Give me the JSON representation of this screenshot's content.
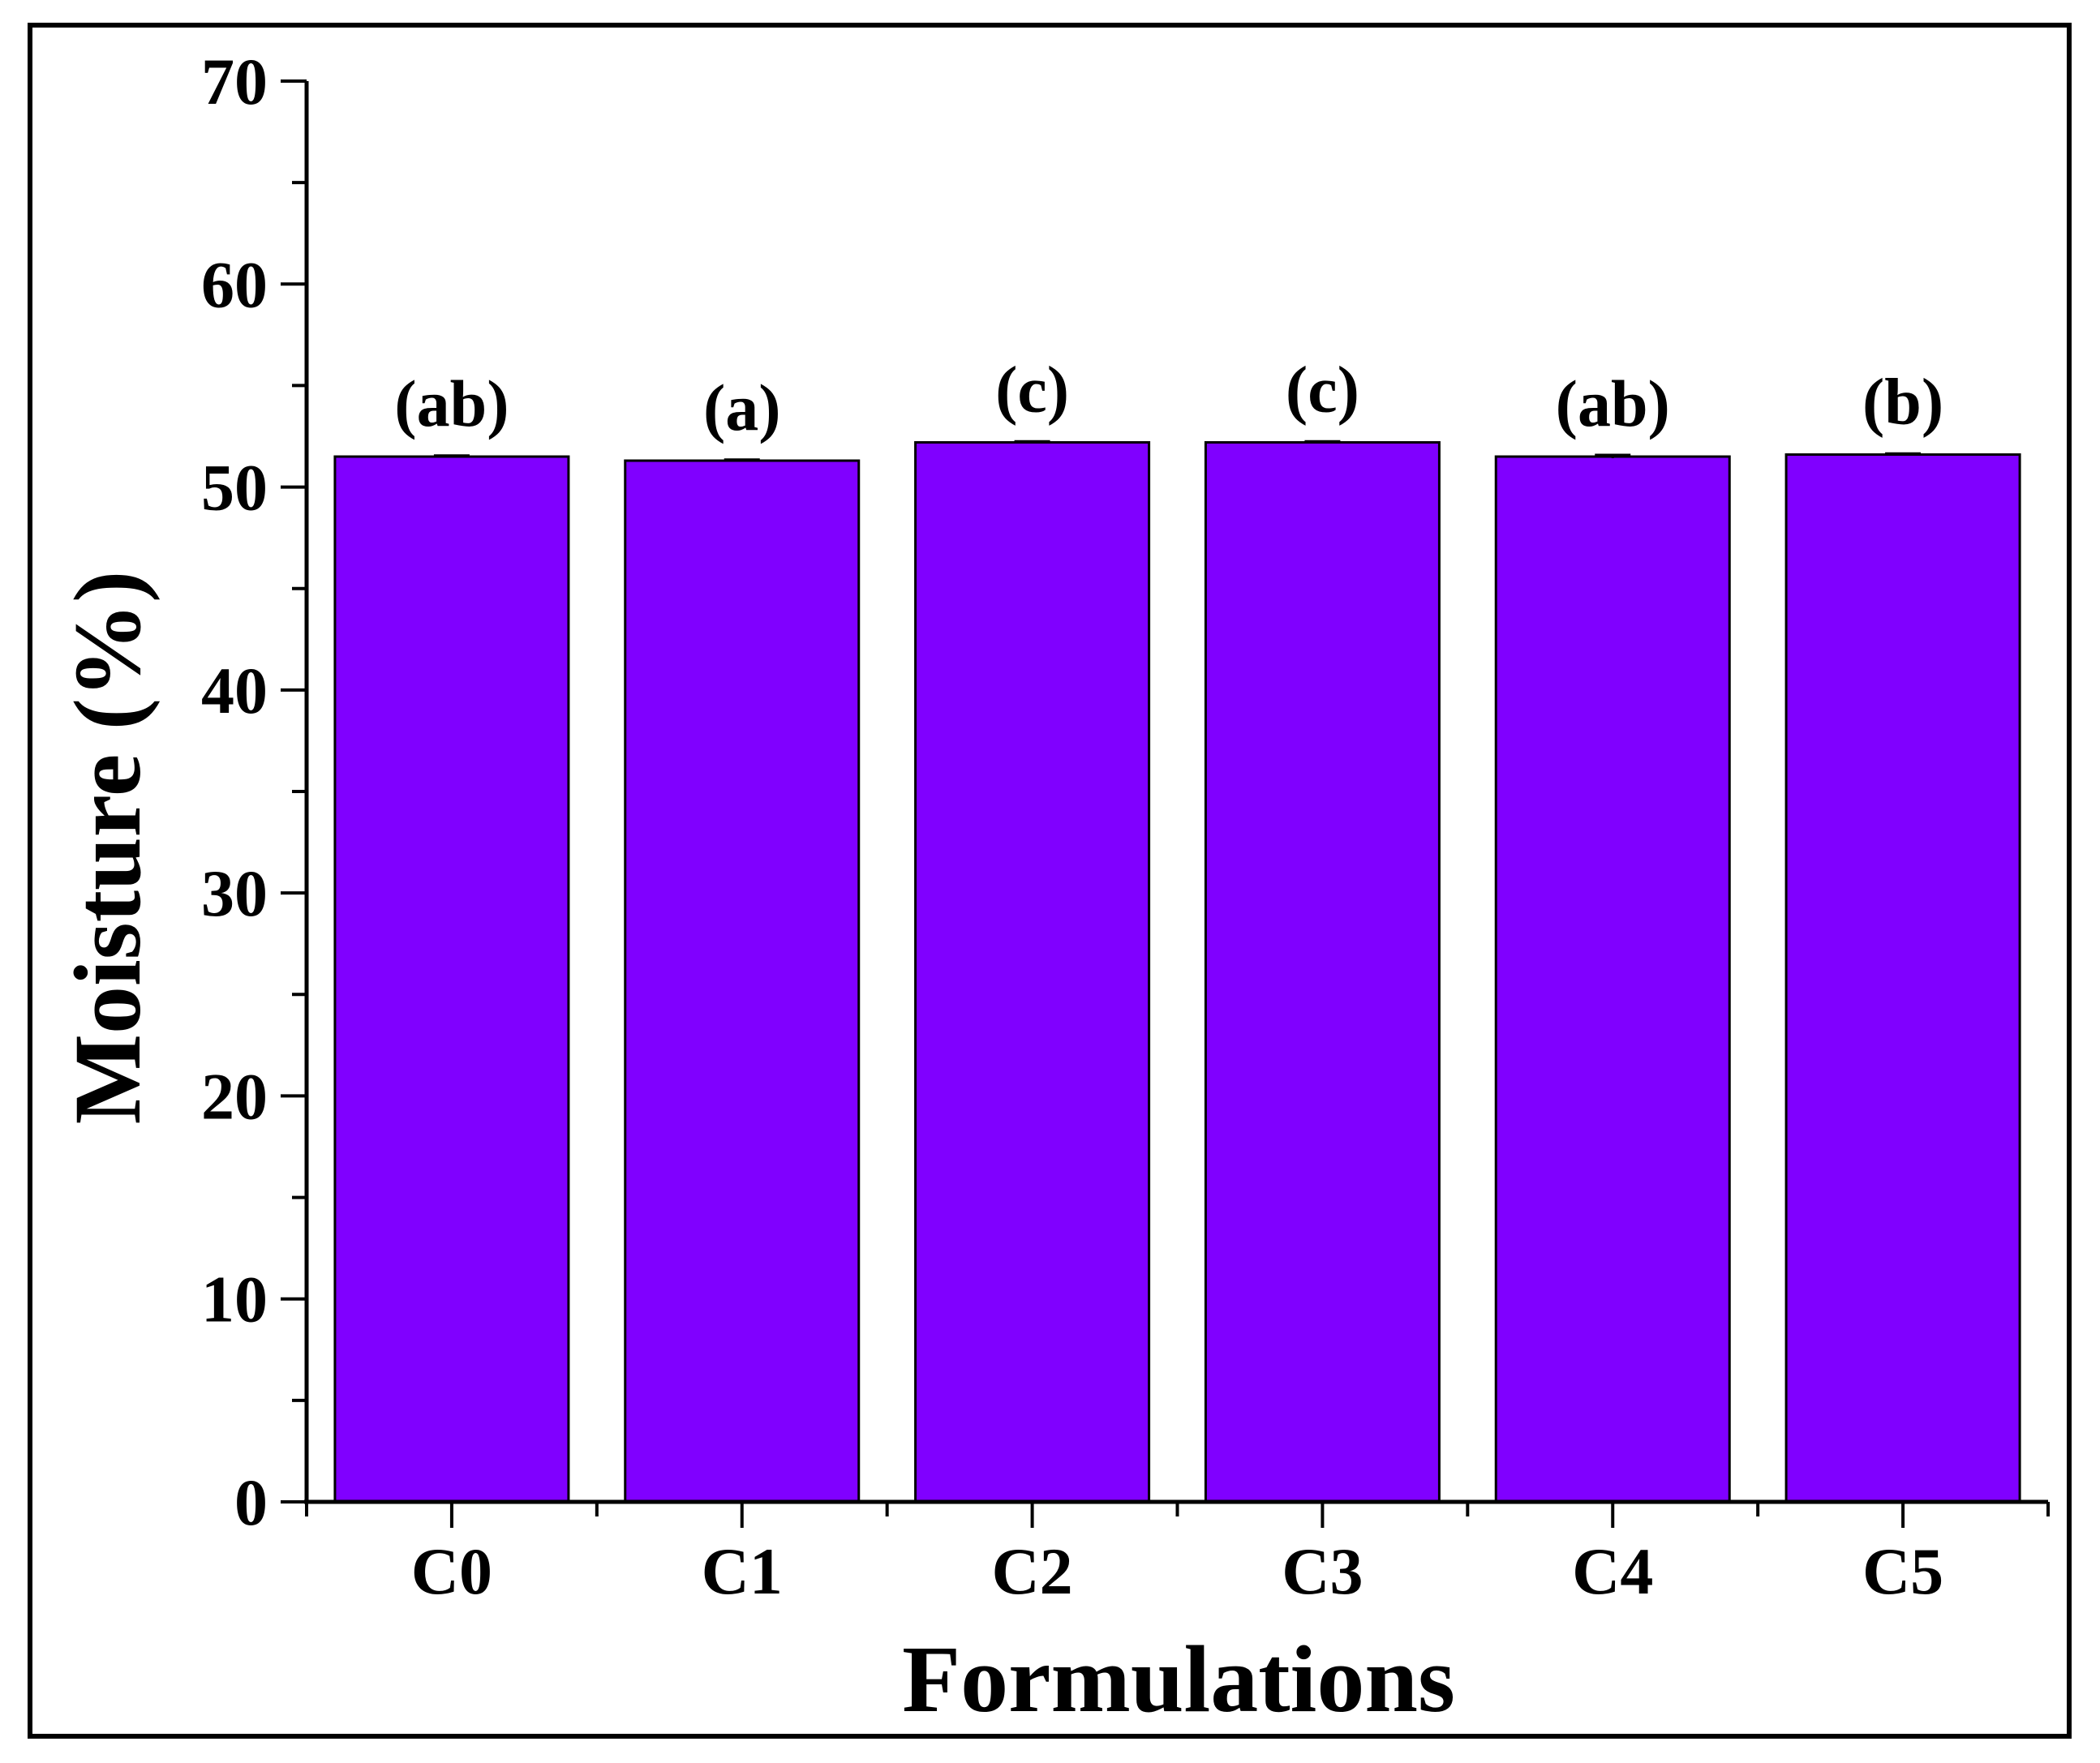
{
  "chart_data": {
    "type": "bar",
    "categories": [
      "C0",
      "C1",
      "C2",
      "C3",
      "C4",
      "C5"
    ],
    "values": [
      51.5,
      51.3,
      52.2,
      52.2,
      51.5,
      51.6
    ],
    "errors": [
      0.05,
      0.05,
      0.05,
      0.05,
      0.08,
      0.05
    ],
    "annotations": [
      "(ab)",
      "(a)",
      "(c)",
      "(c)",
      "(ab)",
      "(b)"
    ],
    "title": "",
    "xlabel": "Formulations",
    "ylabel": "Moisture (%)",
    "ylim": [
      0,
      70
    ],
    "yticks": [
      0,
      10,
      20,
      30,
      40,
      50,
      60,
      70
    ],
    "grid": false,
    "bar_color": "#8000FF"
  }
}
